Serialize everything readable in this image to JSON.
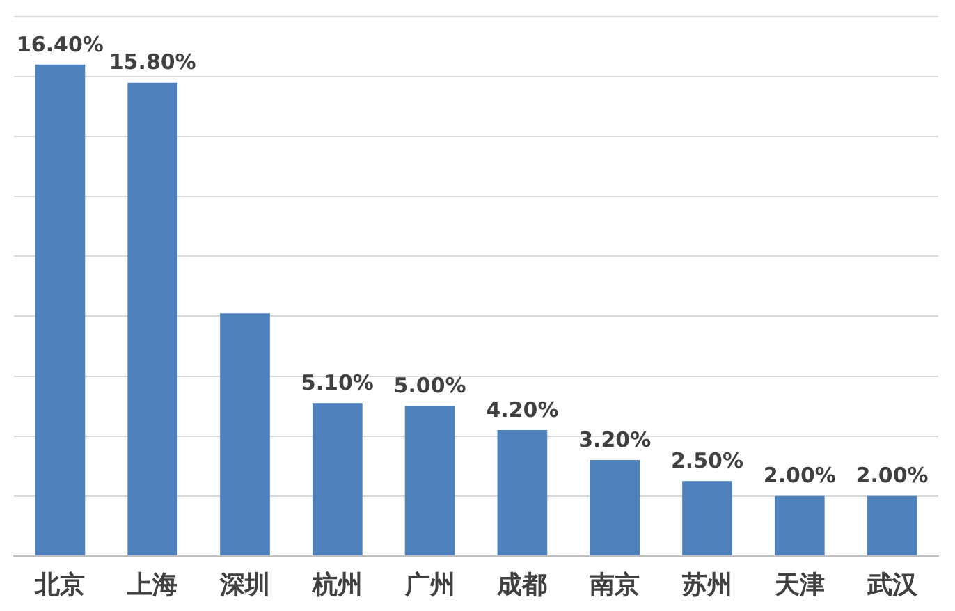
{
  "chart_data": {
    "type": "bar",
    "categories": [
      "北京",
      "上海",
      "深圳",
      "杭州",
      "广州",
      "成都",
      "南京",
      "苏州",
      "天津",
      "武汉"
    ],
    "values": [
      16.4,
      15.8,
      8.1,
      5.1,
      5.0,
      4.2,
      3.2,
      2.5,
      2.0,
      2.0
    ],
    "value_labels": [
      "16.40%",
      "15.80%",
      null,
      "5.10%",
      "5.00%",
      "4.20%",
      "3.20%",
      "2.50%",
      "2.00%",
      "2.00%"
    ],
    "color": "#4f81bd",
    "ylim": [
      0,
      18
    ],
    "yticks": [
      {
        "value": 0,
        "label": null
      },
      {
        "value": 2,
        "label": null
      },
      {
        "value": 4,
        "label": null
      },
      {
        "value": 6,
        "label": null
      },
      {
        "value": 8,
        "label": null
      },
      {
        "value": 10,
        "label": null
      },
      {
        "value": 12,
        "label": null
      },
      {
        "value": 14,
        "label": null
      },
      {
        "value": 16,
        "label": null
      },
      {
        "value": 18,
        "label": null
      }
    ],
    "grid": "y",
    "tick_labels": "x",
    "legend": false
  }
}
